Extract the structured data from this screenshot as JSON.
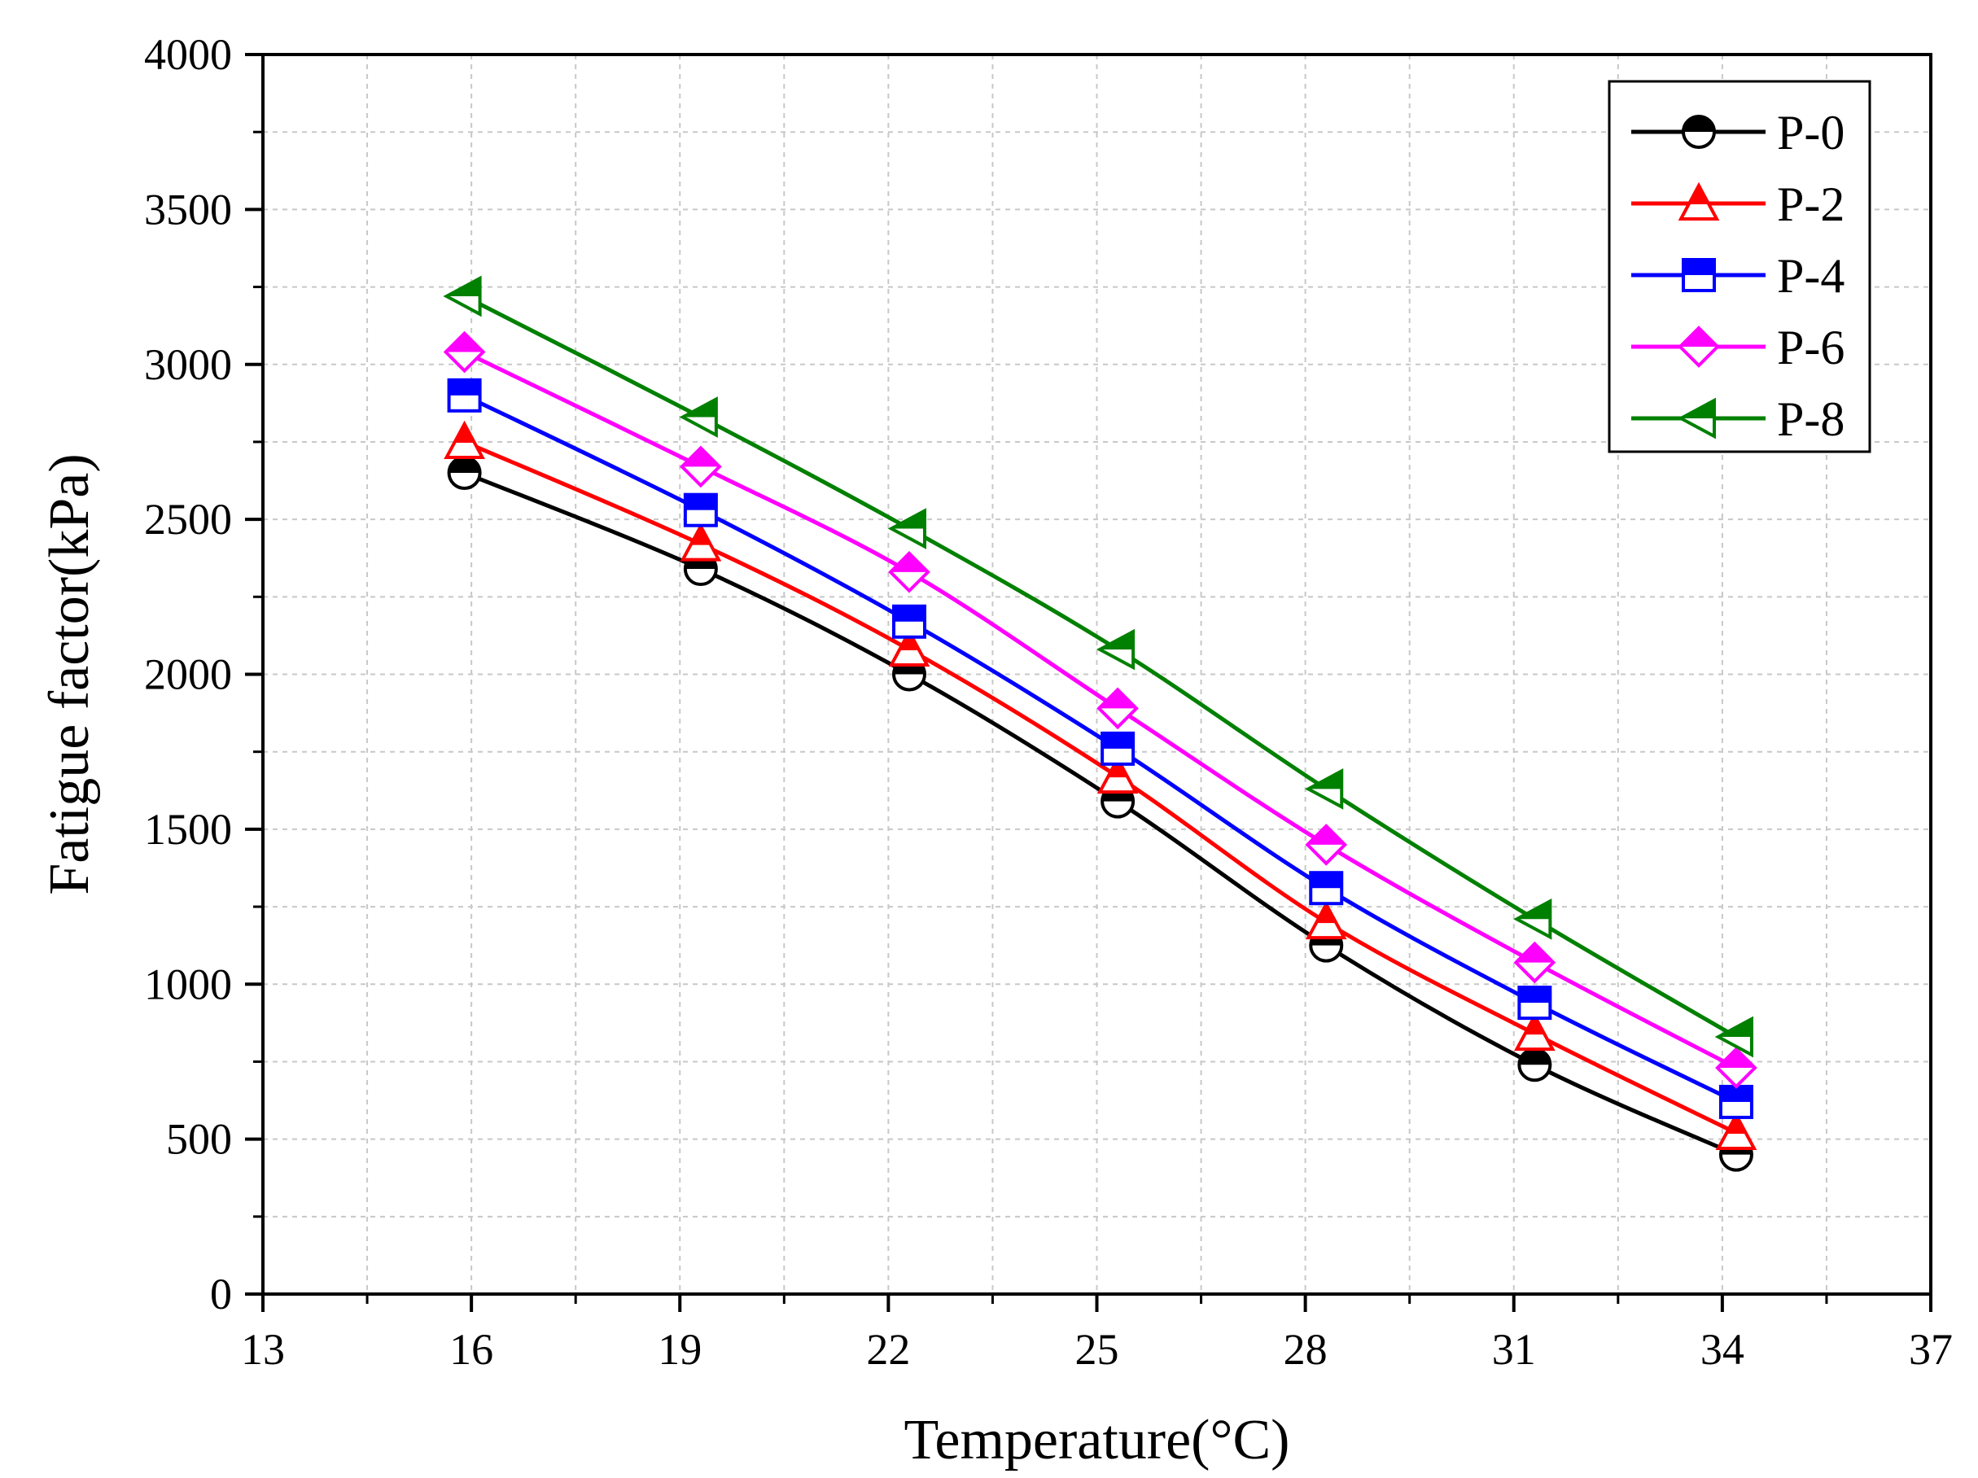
{
  "chart_data": {
    "type": "line",
    "title": "",
    "xlabel": "Temperature(°C)",
    "ylabel": "Fatigue factor(kPa)",
    "xlim": [
      13,
      37
    ],
    "ylim": [
      0,
      4000
    ],
    "xticks": [
      13,
      16,
      19,
      22,
      25,
      28,
      31,
      34,
      37
    ],
    "yticks": [
      0,
      500,
      1000,
      1500,
      2000,
      2500,
      3000,
      3500,
      4000
    ],
    "x": [
      15.9,
      19.3,
      22.3,
      25.3,
      28.3,
      31.3,
      34.2
    ],
    "grid": true,
    "legend_position": "top-right",
    "series": [
      {
        "name": "P-0",
        "color": "#000000",
        "marker": "circle",
        "values": [
          2650,
          2340,
          2000,
          1590,
          1125,
          740,
          450
        ]
      },
      {
        "name": "P-2",
        "color": "#ff0000",
        "marker": "triangle-up",
        "values": [
          2750,
          2420,
          2080,
          1670,
          1200,
          840,
          520
        ]
      },
      {
        "name": "P-4",
        "color": "#0000ff",
        "marker": "square",
        "values": [
          2900,
          2530,
          2170,
          1760,
          1310,
          940,
          620
        ]
      },
      {
        "name": "P-6",
        "color": "#ff00ff",
        "marker": "diamond",
        "values": [
          3040,
          2670,
          2330,
          1890,
          1450,
          1070,
          730
        ]
      },
      {
        "name": "P-8",
        "color": "#008000",
        "marker": "triangle-left",
        "values": [
          3220,
          2830,
          2470,
          2080,
          1630,
          1210,
          830
        ]
      }
    ]
  }
}
